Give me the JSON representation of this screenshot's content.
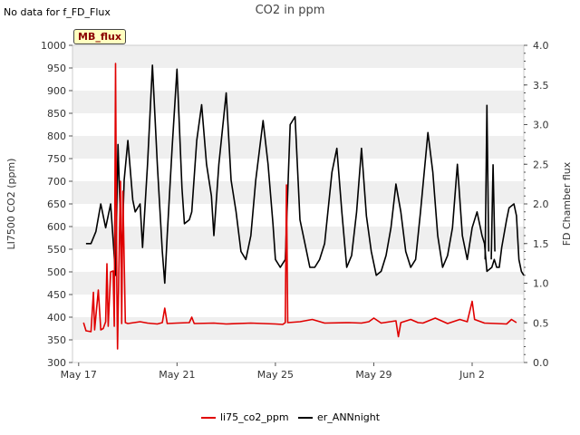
{
  "header": {
    "status_text": "No data for f_FD_Flux",
    "title": "CO2 in ppm",
    "tag": "MB_flux"
  },
  "chart_data": {
    "type": "line",
    "title": "CO2 in ppm",
    "xlabel": "",
    "ylabel_left": "LI7500 CO2 (ppm)",
    "ylabel_right": "FD Chamber flux",
    "x_domain_days": [
      16.75,
      35.1
    ],
    "ylim_left": [
      300,
      1000
    ],
    "ylim_right": [
      0.0,
      4.0
    ],
    "yticks_left": [
      300,
      350,
      400,
      450,
      500,
      550,
      600,
      650,
      700,
      750,
      800,
      850,
      900,
      950,
      1000
    ],
    "yticks_right": [
      0.0,
      0.5,
      1.0,
      1.5,
      2.0,
      2.5,
      3.0,
      3.5,
      4.0
    ],
    "ytick_labels_right": [
      "0.0",
      "0.5",
      "1.0",
      "1.5",
      "2.0",
      "2.5",
      "3.0",
      "3.5",
      "4.0"
    ],
    "xticks": [
      {
        "label": "May 17",
        "day": 17
      },
      {
        "label": "May 21",
        "day": 21
      },
      {
        "label": "May 25",
        "day": 25
      },
      {
        "label": "May 29",
        "day": 29
      },
      {
        "label": "Jun 2",
        "day": 33
      }
    ],
    "grid": "horizontal bands",
    "legend": "bottom-center",
    "series": [
      {
        "name": "li75_co2_ppm",
        "axis": "left",
        "color": "#e00000",
        "points": [
          [
            17.2,
            388
          ],
          [
            17.3,
            370
          ],
          [
            17.5,
            368
          ],
          [
            17.6,
            455
          ],
          [
            17.65,
            372
          ],
          [
            17.8,
            460
          ],
          [
            17.9,
            372
          ],
          [
            18.0,
            375
          ],
          [
            18.1,
            390
          ],
          [
            18.15,
            518
          ],
          [
            18.2,
            380
          ],
          [
            18.3,
            500
          ],
          [
            18.4,
            502
          ],
          [
            18.45,
            380
          ],
          [
            18.5,
            960
          ],
          [
            18.55,
            470
          ],
          [
            18.58,
            330
          ],
          [
            18.6,
            390
          ],
          [
            18.7,
            700
          ],
          [
            18.75,
            386
          ],
          [
            18.8,
            678
          ],
          [
            18.9,
            388
          ],
          [
            19.0,
            386
          ],
          [
            19.5,
            390
          ],
          [
            19.8,
            387
          ],
          [
            20.0,
            386
          ],
          [
            20.2,
            385
          ],
          [
            20.4,
            388
          ],
          [
            20.5,
            420
          ],
          [
            20.6,
            386
          ],
          [
            21.0,
            387
          ],
          [
            21.5,
            388
          ],
          [
            21.6,
            400
          ],
          [
            21.7,
            386
          ],
          [
            22.5,
            387
          ],
          [
            23.0,
            385
          ],
          [
            24.0,
            387
          ],
          [
            25.0,
            385
          ],
          [
            25.3,
            384
          ],
          [
            25.4,
            388
          ],
          [
            25.45,
            692
          ],
          [
            25.5,
            388
          ],
          [
            26.0,
            390
          ],
          [
            26.5,
            395
          ],
          [
            27.0,
            387
          ],
          [
            28.0,
            388
          ],
          [
            28.5,
            387
          ],
          [
            28.8,
            390
          ],
          [
            29.0,
            398
          ],
          [
            29.3,
            387
          ],
          [
            29.9,
            392
          ],
          [
            30.0,
            357
          ],
          [
            30.1,
            388
          ],
          [
            30.5,
            395
          ],
          [
            30.8,
            388
          ],
          [
            31.0,
            387
          ],
          [
            31.5,
            398
          ],
          [
            32.0,
            386
          ],
          [
            32.5,
            395
          ],
          [
            32.8,
            390
          ],
          [
            33.0,
            435
          ],
          [
            33.1,
            395
          ],
          [
            33.5,
            387
          ],
          [
            34.0,
            386
          ],
          [
            34.4,
            385
          ],
          [
            34.6,
            395
          ],
          [
            34.8,
            388
          ]
        ]
      },
      {
        "name": "er_ANNnight",
        "axis": "right",
        "color": "#000000",
        "points": [
          [
            17.3,
            1.5
          ],
          [
            17.5,
            1.5
          ],
          [
            17.7,
            1.65
          ],
          [
            17.9,
            2.0
          ],
          [
            18.1,
            1.7
          ],
          [
            18.3,
            2.0
          ],
          [
            18.5,
            1.1
          ],
          [
            18.6,
            2.75
          ],
          [
            18.75,
            1.3
          ],
          [
            18.85,
            2.3
          ],
          [
            19.0,
            2.8
          ],
          [
            19.2,
            2.05
          ],
          [
            19.3,
            1.9
          ],
          [
            19.5,
            2.0
          ],
          [
            19.6,
            1.45
          ],
          [
            19.8,
            2.5
          ],
          [
            20.0,
            3.75
          ],
          [
            20.2,
            2.5
          ],
          [
            20.4,
            1.4
          ],
          [
            20.5,
            1.0
          ],
          [
            20.6,
            1.6
          ],
          [
            20.8,
            2.7
          ],
          [
            21.0,
            3.7
          ],
          [
            21.2,
            2.2
          ],
          [
            21.3,
            1.75
          ],
          [
            21.5,
            1.8
          ],
          [
            21.6,
            1.9
          ],
          [
            21.8,
            2.8
          ],
          [
            22.0,
            3.25
          ],
          [
            22.2,
            2.5
          ],
          [
            22.4,
            2.1
          ],
          [
            22.5,
            1.6
          ],
          [
            22.7,
            2.5
          ],
          [
            23.0,
            3.4
          ],
          [
            23.2,
            2.3
          ],
          [
            23.4,
            1.9
          ],
          [
            23.6,
            1.4
          ],
          [
            23.8,
            1.3
          ],
          [
            24.0,
            1.6
          ],
          [
            24.2,
            2.3
          ],
          [
            24.5,
            3.05
          ],
          [
            24.7,
            2.5
          ],
          [
            24.9,
            1.75
          ],
          [
            25.0,
            1.3
          ],
          [
            25.2,
            1.2
          ],
          [
            25.4,
            1.3
          ],
          [
            25.6,
            3.0
          ],
          [
            25.8,
            3.1
          ],
          [
            26.0,
            1.8
          ],
          [
            26.2,
            1.5
          ],
          [
            26.4,
            1.2
          ],
          [
            26.6,
            1.2
          ],
          [
            26.8,
            1.3
          ],
          [
            27.0,
            1.5
          ],
          [
            27.3,
            2.4
          ],
          [
            27.5,
            2.7
          ],
          [
            27.7,
            1.9
          ],
          [
            27.9,
            1.2
          ],
          [
            28.1,
            1.35
          ],
          [
            28.3,
            1.9
          ],
          [
            28.5,
            2.7
          ],
          [
            28.7,
            1.85
          ],
          [
            28.9,
            1.4
          ],
          [
            29.1,
            1.1
          ],
          [
            29.3,
            1.15
          ],
          [
            29.5,
            1.35
          ],
          [
            29.7,
            1.7
          ],
          [
            29.9,
            2.25
          ],
          [
            30.1,
            1.9
          ],
          [
            30.3,
            1.4
          ],
          [
            30.5,
            1.2
          ],
          [
            30.7,
            1.3
          ],
          [
            30.9,
            1.9
          ],
          [
            31.2,
            2.9
          ],
          [
            31.4,
            2.4
          ],
          [
            31.6,
            1.6
          ],
          [
            31.8,
            1.2
          ],
          [
            32.0,
            1.35
          ],
          [
            32.2,
            1.7
          ],
          [
            32.4,
            2.5
          ],
          [
            32.6,
            1.6
          ],
          [
            32.8,
            1.3
          ],
          [
            33.0,
            1.7
          ],
          [
            33.2,
            1.9
          ],
          [
            33.4,
            1.6
          ],
          [
            33.5,
            1.5
          ],
          [
            33.6,
            1.15
          ],
          [
            33.8,
            1.2
          ],
          [
            33.9,
            1.3
          ],
          [
            34.0,
            1.2
          ],
          [
            34.1,
            1.2
          ],
          [
            34.2,
            1.45
          ],
          [
            34.4,
            1.8
          ],
          [
            34.5,
            1.95
          ],
          [
            34.7,
            2.0
          ],
          [
            34.8,
            1.85
          ],
          [
            34.9,
            1.3
          ],
          [
            35.0,
            1.15
          ],
          [
            35.1,
            1.1
          ]
        ]
      }
    ],
    "extra_spikes": [
      [
        33.6,
        3.25
      ],
      [
        33.85,
        2.5
      ]
    ]
  }
}
